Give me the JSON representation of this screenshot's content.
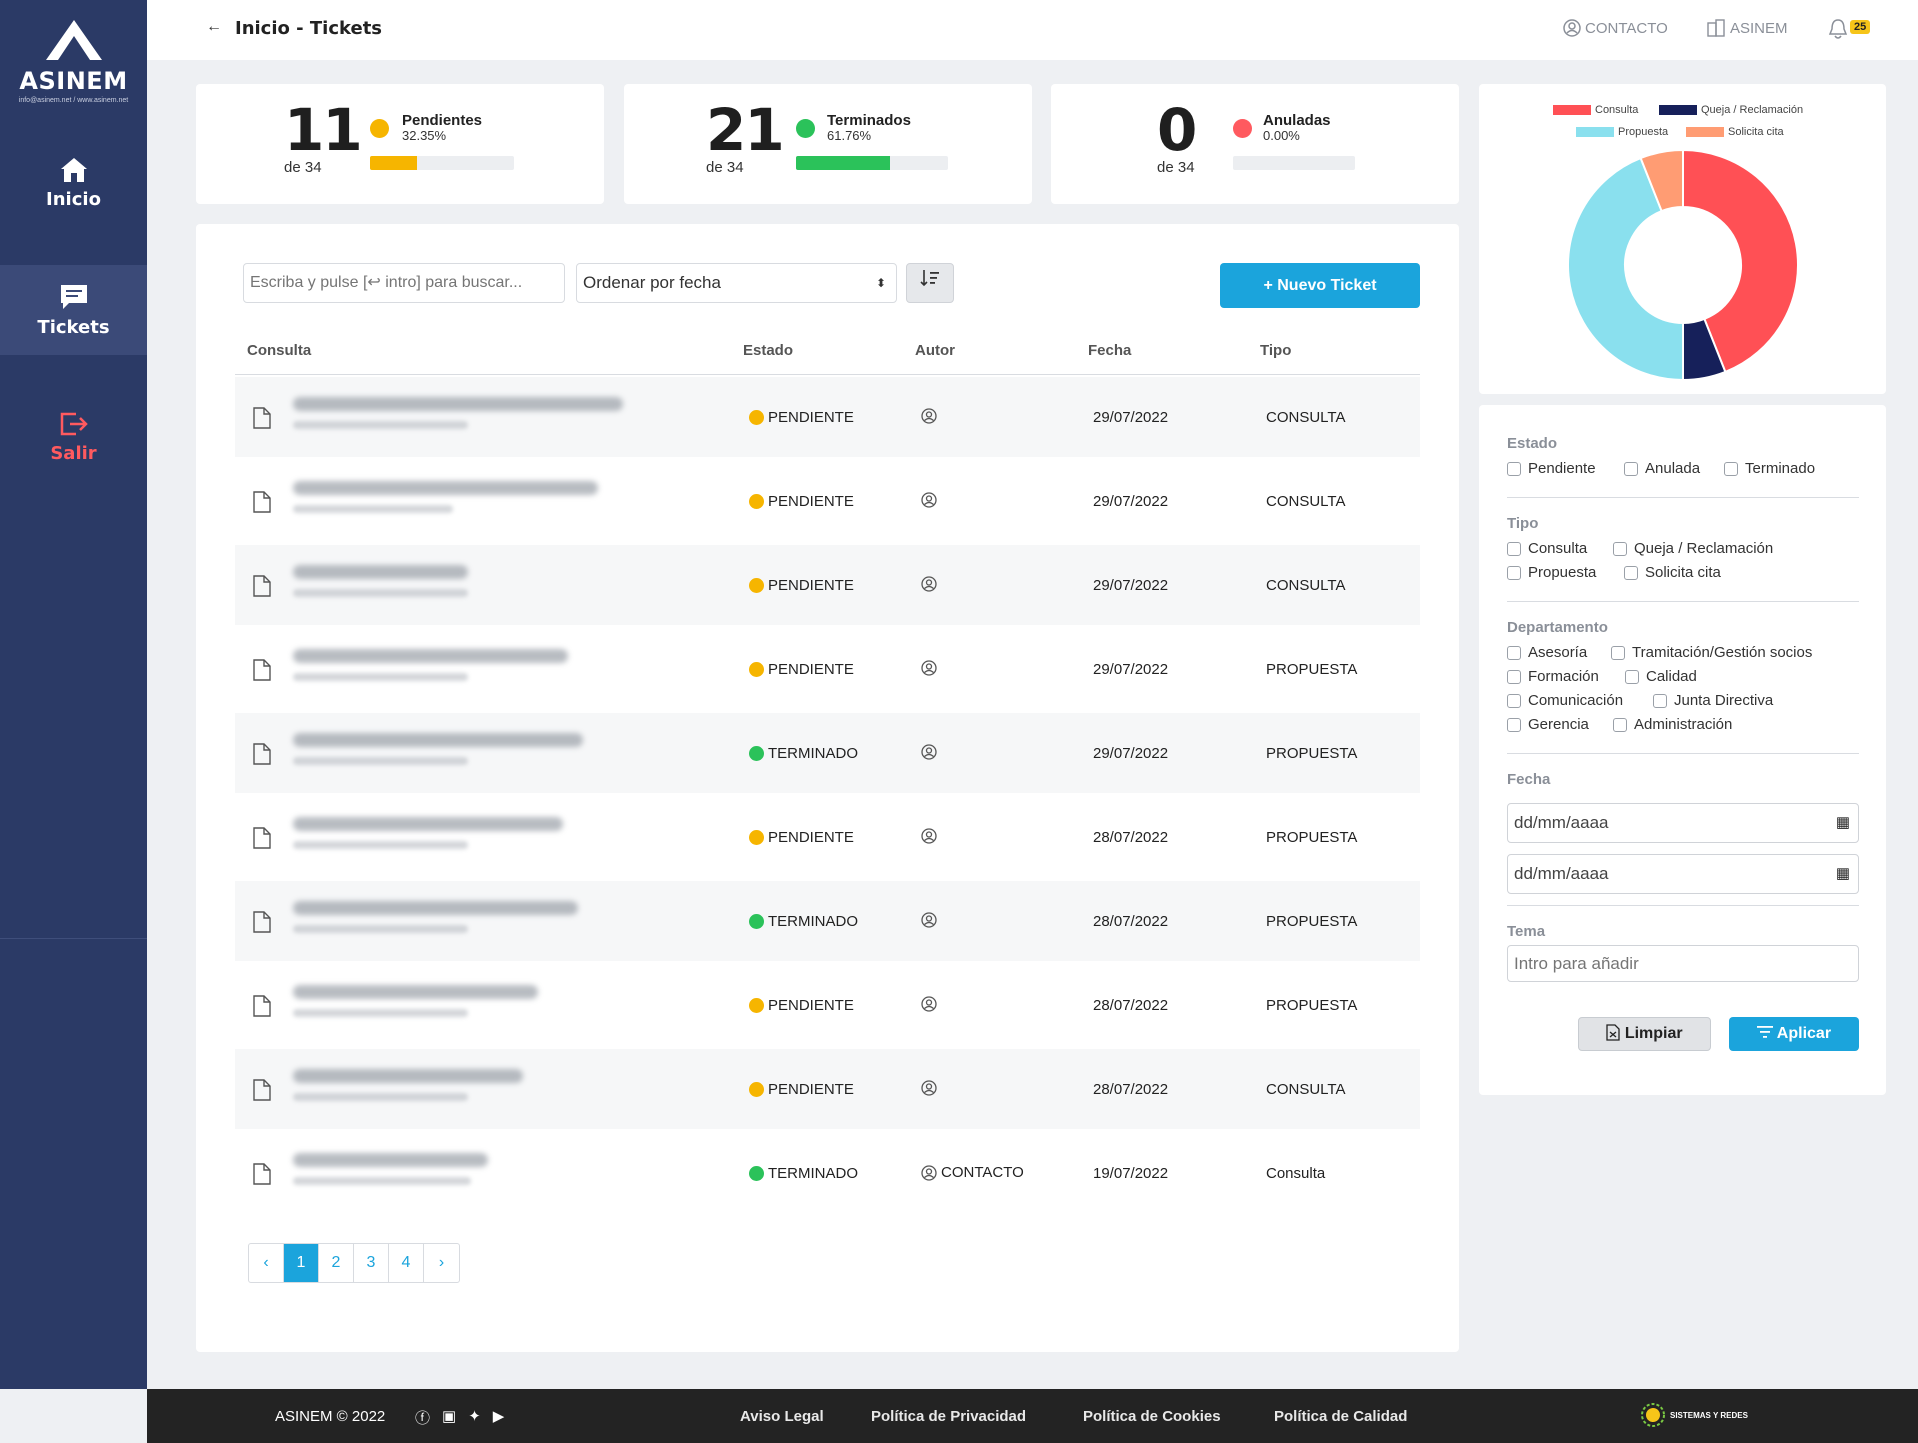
{
  "sidebar": {
    "logo_text": "ASINEM",
    "logo_sub": "info@asinem.net / www.asinem.net",
    "items": [
      {
        "label": "Inicio",
        "icon": "home-icon"
      },
      {
        "label": "Tickets",
        "icon": "chat-icon"
      },
      {
        "label": "Salir",
        "icon": "logout-icon"
      }
    ]
  },
  "header": {
    "title": "Inicio - Tickets",
    "contact": "CONTACTO",
    "org": "ASINEM",
    "notifications": "25"
  },
  "stats": [
    {
      "count": "11",
      "of": "de 34",
      "label": "Pendientes",
      "pct": "32.35%",
      "fraction": 0.3235,
      "color": "#f6b500"
    },
    {
      "count": "21",
      "of": "de 34",
      "label": "Terminados",
      "pct": "61.76%",
      "fraction": 0.6176,
      "color": "#2bc25a"
    },
    {
      "count": "0",
      "of": "de 34",
      "label": "Anuladas",
      "pct": "0.00%",
      "fraction": 0.0,
      "color": "#ff5a5f"
    }
  ],
  "toolbar": {
    "search_placeholder": "Escriba y pulse [↩ intro] para buscar...",
    "sort_label": "Ordenar por fecha",
    "new_ticket": "+ Nuevo Ticket"
  },
  "table": {
    "headers": [
      "Consulta",
      "Estado",
      "Autor",
      "Fecha",
      "Tipo"
    ],
    "rows": [
      {
        "estado": "PENDIENTE",
        "autor": "",
        "fecha": "29/07/2022",
        "tipo": "CONSULTA"
      },
      {
        "estado": "PENDIENTE",
        "autor": "",
        "fecha": "29/07/2022",
        "tipo": "CONSULTA"
      },
      {
        "estado": "PENDIENTE",
        "autor": "",
        "fecha": "29/07/2022",
        "tipo": "CONSULTA"
      },
      {
        "estado": "PENDIENTE",
        "autor": "",
        "fecha": "29/07/2022",
        "tipo": "PROPUESTA"
      },
      {
        "estado": "TERMINADO",
        "autor": "",
        "fecha": "29/07/2022",
        "tipo": "PROPUESTA"
      },
      {
        "estado": "PENDIENTE",
        "autor": "",
        "fecha": "28/07/2022",
        "tipo": "PROPUESTA"
      },
      {
        "estado": "TERMINADO",
        "autor": "",
        "fecha": "28/07/2022",
        "tipo": "PROPUESTA"
      },
      {
        "estado": "PENDIENTE",
        "autor": "",
        "fecha": "28/07/2022",
        "tipo": "PROPUESTA"
      },
      {
        "estado": "PENDIENTE",
        "autor": "",
        "fecha": "28/07/2022",
        "tipo": "CONSULTA"
      },
      {
        "estado": "TERMINADO",
        "autor": "CONTACTO",
        "fecha": "19/07/2022",
        "tipo": "Consulta"
      }
    ],
    "status_colors": {
      "PENDIENTE": "#f6b500",
      "TERMINADO": "#2bc25a"
    }
  },
  "pagination": {
    "prev": "‹",
    "pages": [
      "1",
      "2",
      "3",
      "4"
    ],
    "next": "›",
    "current": "1"
  },
  "chart_data": {
    "type": "pie",
    "legend": [
      "Consulta",
      "Queja / Reclamación",
      "Propuesta",
      "Solicita cita"
    ],
    "values": [
      44,
      6,
      44,
      6
    ],
    "colors": [
      "#ff5055",
      "#16205a",
      "#8ae0ee",
      "#ff9c73"
    ],
    "legend_position": "top"
  },
  "filters": {
    "estado": {
      "title": "Estado",
      "options": [
        "Pendiente",
        "Anulada",
        "Terminado"
      ]
    },
    "tipo": {
      "title": "Tipo",
      "options": [
        "Consulta",
        "Queja / Reclamación",
        "Propuesta",
        "Solicita cita"
      ]
    },
    "departamento": {
      "title": "Departamento",
      "options": [
        "Asesoría",
        "Tramitación/Gestión socios",
        "Formación",
        "Calidad",
        "Comunicación",
        "Junta Directiva",
        "Gerencia",
        "Administración"
      ]
    },
    "fecha": {
      "title": "Fecha",
      "from_placeholder": "dd/mm/aaaa",
      "to_placeholder": "dd/mm/aaaa"
    },
    "tema": {
      "title": "Tema",
      "placeholder": "Intro para añadir"
    },
    "clear": "Limpiar",
    "apply": "Aplicar"
  },
  "footer": {
    "copyright": "ASINEM © 2022",
    "links": [
      "Aviso Legal",
      "Política de Privacidad",
      "Política de Cookies",
      "Política de Calidad"
    ],
    "brand": "SISTEMAS Y REDES"
  }
}
